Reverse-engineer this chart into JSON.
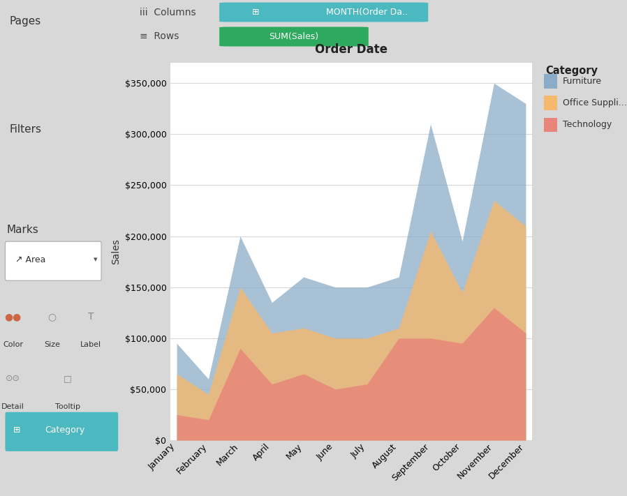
{
  "title": "Order Date",
  "ylabel": "Sales",
  "months": [
    "January",
    "February",
    "March",
    "April",
    "May",
    "June",
    "July",
    "August",
    "September",
    "October",
    "November",
    "December"
  ],
  "furniture": [
    95000,
    60000,
    200000,
    135000,
    160000,
    150000,
    150000,
    160000,
    310000,
    195000,
    350000,
    330000
  ],
  "office_supplies": [
    65000,
    45000,
    150000,
    105000,
    110000,
    100000,
    100000,
    110000,
    205000,
    145000,
    235000,
    210000
  ],
  "technology": [
    25000,
    20000,
    90000,
    55000,
    65000,
    50000,
    55000,
    100000,
    100000,
    95000,
    130000,
    105000
  ],
  "furniture_color": "#8bacc8",
  "office_supplies_color": "#f5b96e",
  "technology_color": "#e8857a",
  "ylim": [
    0,
    370000
  ],
  "yticks": [
    0,
    50000,
    100000,
    150000,
    200000,
    250000,
    300000,
    350000
  ],
  "background_color": "#ffffff",
  "sidebar_bg": "#efefef",
  "toolbar_bg": "#f3f3f3",
  "legend_bg": "#ffffff",
  "grid_color": "#d8d8d8",
  "legend_title": "Category",
  "legend_labels": [
    "Furniture",
    "Office Suppli...",
    "Technology"
  ],
  "pill_blue": "#4cb8c0",
  "pill_green": "#2eaa5e",
  "title_fontsize": 12,
  "axis_label_fontsize": 10,
  "tick_fontsize": 9,
  "panel_text_fontsize": 11
}
